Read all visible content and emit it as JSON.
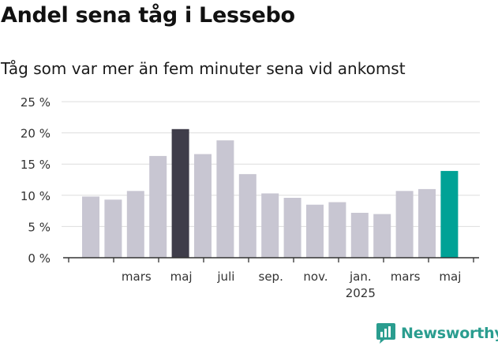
{
  "title": "Andel sena tåg i Lessebo",
  "subtitle": "Tåg som var mer än fem minuter sena vid ankomst",
  "brand": {
    "name": "Newsworthy",
    "color": "#2a9d8f",
    "icon": "bar-chart-logo-icon"
  },
  "colors": {
    "default_bar": "#c8c6d2",
    "highlight_bar": "#3f3d4a",
    "latest_bar": "#00a296",
    "grid": "#dddddd",
    "axis": "#333333",
    "text": "#333333"
  },
  "chart_data": {
    "type": "bar",
    "title": "Andel sena tåg i Lessebo",
    "subtitle": "Tåg som var mer än fem minuter sena vid ankomst",
    "xlabel": "",
    "ylabel": "",
    "ylim": [
      0,
      25
    ],
    "yticks": [
      0,
      5,
      10,
      15,
      20,
      25
    ],
    "ytick_labels": [
      "0 %",
      "5 %",
      "10 %",
      "15 %",
      "20 %",
      "25 %"
    ],
    "grid": true,
    "legend": "none",
    "categories": [
      "2024-01",
      "2024-02",
      "2024-03",
      "2024-04",
      "2024-05",
      "2024-06",
      "2024-07",
      "2024-08",
      "2024-09",
      "2024-10",
      "2024-11",
      "2024-12",
      "2025-01",
      "2025-02",
      "2025-03",
      "2025-04",
      "2025-05",
      "2025-06"
    ],
    "values": [
      9.8,
      9.3,
      10.7,
      16.3,
      20.6,
      16.6,
      18.8,
      13.4,
      10.3,
      9.6,
      8.5,
      8.9,
      7.2,
      7.0,
      10.7,
      11.0,
      13.9,
      null
    ],
    "highlight": {
      "max_index": 4,
      "latest_index": 16
    },
    "xtick_labels": [
      {
        "at": 2,
        "label": "mars",
        "sublabel": ""
      },
      {
        "at": 4,
        "label": "maj",
        "sublabel": ""
      },
      {
        "at": 6,
        "label": "juli",
        "sublabel": ""
      },
      {
        "at": 8,
        "label": "sep.",
        "sublabel": ""
      },
      {
        "at": 10,
        "label": "nov.",
        "sublabel": ""
      },
      {
        "at": 12,
        "label": "jan.",
        "sublabel": "2025"
      },
      {
        "at": 14,
        "label": "mars",
        "sublabel": ""
      },
      {
        "at": 16,
        "label": "maj",
        "sublabel": ""
      }
    ]
  }
}
